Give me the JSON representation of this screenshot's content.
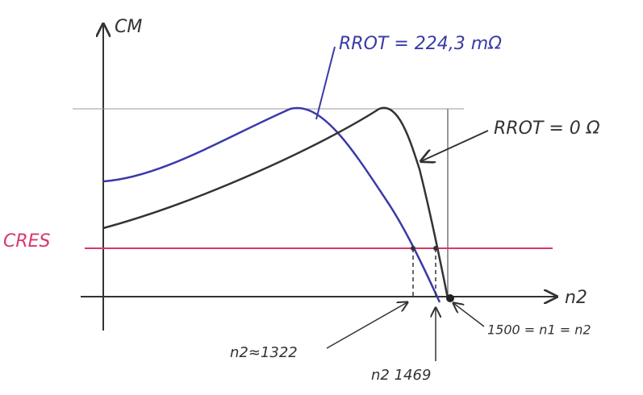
{
  "axes": {
    "y_label": "CM",
    "x_label": "n2"
  },
  "curves": [
    {
      "label": "RROT = 224,3 mΩ"
    },
    {
      "label": "RROT = 0 Ω"
    }
  ],
  "load_line": {
    "label": "CRES"
  },
  "annotations": [
    "n2≈1322",
    "n2 1469",
    "1500 = n1 = n2"
  ]
}
